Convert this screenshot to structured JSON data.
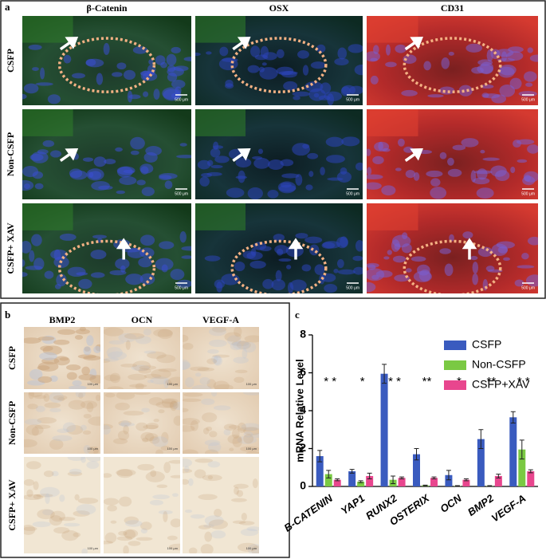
{
  "panel_a": {
    "label": "a",
    "columns": [
      "β-Catenin",
      "OSX",
      "CD31"
    ],
    "rows": [
      "CSFP",
      "Non-CSFP",
      "CSFP+ XAV"
    ],
    "scale_bar": "500 μm"
  },
  "panel_b": {
    "label": "b",
    "columns": [
      "BMP2",
      "OCN",
      "VEGF-A"
    ],
    "rows": [
      "CSFP",
      "Non-CSFP",
      "CSFP+ XAV"
    ],
    "scale_bar": "100 μm"
  },
  "chart_data": {
    "type": "bar",
    "panel_label": "c",
    "y_label": "mRNA Relative Level",
    "categories": [
      "B-CATENIN",
      "YAP1",
      "RUNX2",
      "OSTERIX",
      "OCN",
      "BMP2",
      "VEGF-A"
    ],
    "series": [
      {
        "name": "CSFP",
        "color": "#3a5bbf",
        "values": [
          1.6,
          0.8,
          5.95,
          1.7,
          0.6,
          2.5,
          3.65
        ],
        "errors": [
          0.3,
          0.1,
          0.5,
          0.3,
          0.25,
          0.5,
          0.3
        ]
      },
      {
        "name": "Non-CSFP",
        "color": "#7ac943",
        "values": [
          0.65,
          0.25,
          0.35,
          0.05,
          0.02,
          0.02,
          1.95
        ],
        "errors": [
          0.2,
          0.05,
          0.2,
          0.02,
          0.02,
          0.02,
          0.5
        ]
      },
      {
        "name": "CSFP+XAV",
        "color": "#e8468e",
        "values": [
          0.35,
          0.55,
          0.45,
          0.45,
          0.35,
          0.55,
          0.8
        ],
        "errors": [
          0.05,
          0.15,
          0.05,
          0.05,
          0.05,
          0.1,
          0.08
        ]
      }
    ],
    "significance": [
      "* *",
      "*",
      "* *",
      "**",
      "*",
      "**",
      "* *"
    ],
    "ylim": [
      0,
      8
    ],
    "yticks": [
      0,
      2,
      4,
      6,
      8
    ],
    "legend": "upper right"
  }
}
